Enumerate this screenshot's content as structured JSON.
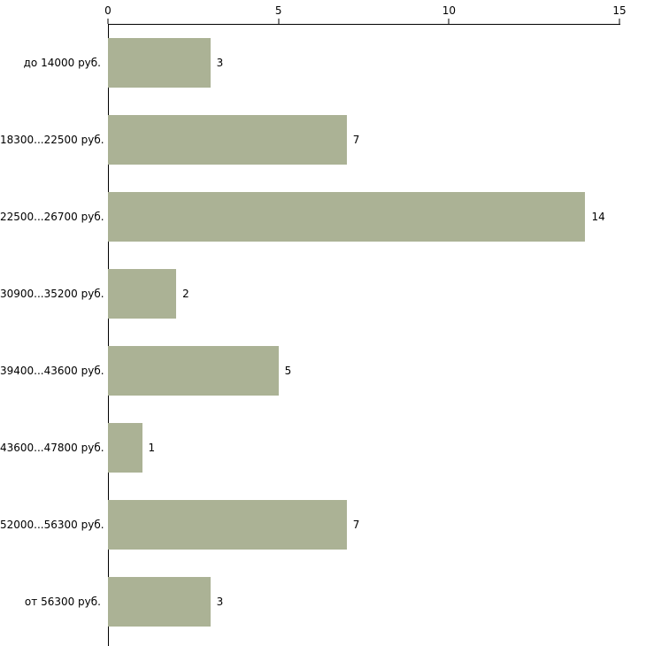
{
  "chart_data": {
    "type": "bar",
    "orientation": "horizontal",
    "title": "",
    "xlabel": "",
    "ylabel": "",
    "categories": [
      "до 14000 руб.",
      "18300...22500 руб.",
      "22500...26700 руб.",
      "30900...35200 руб.",
      "39400...43600 руб.",
      "43600...47800 руб.",
      "52000...56300 руб.",
      "от 56300 руб."
    ],
    "values": [
      3,
      7,
      14,
      2,
      5,
      1,
      7,
      3
    ],
    "xlim": [
      0,
      15
    ],
    "x_ticks": [
      0,
      5,
      10,
      15
    ],
    "grid": false,
    "legend": false,
    "value_labels": true,
    "colors": {
      "bar": "#abb295",
      "axis": "#000000",
      "background": "#ffffff",
      "text": "#000000"
    }
  }
}
